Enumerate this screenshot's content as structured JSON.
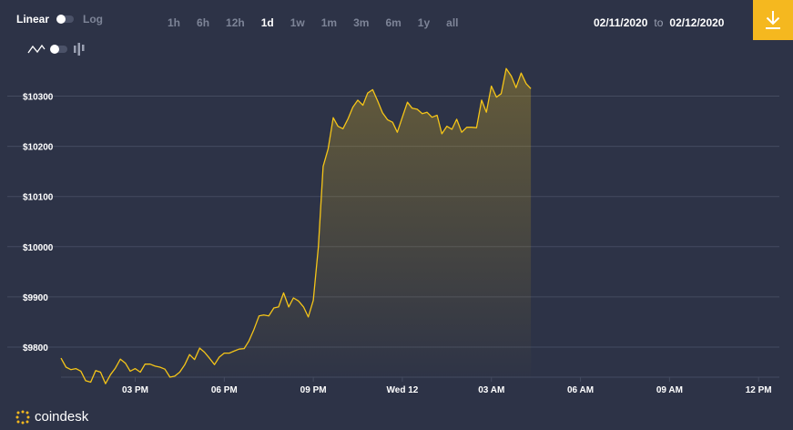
{
  "toolbar": {
    "scale_active": "Linear",
    "scale_inactive": "Log",
    "ranges": [
      {
        "label": "1h",
        "active": false
      },
      {
        "label": "6h",
        "active": false
      },
      {
        "label": "12h",
        "active": false
      },
      {
        "label": "1d",
        "active": true
      },
      {
        "label": "1w",
        "active": false
      },
      {
        "label": "1m",
        "active": false
      },
      {
        "label": "3m",
        "active": false
      },
      {
        "label": "6m",
        "active": false
      },
      {
        "label": "1y",
        "active": false
      },
      {
        "label": "all",
        "active": false
      }
    ],
    "date_from": "02/11/2020",
    "date_separator": "to",
    "date_to": "02/12/2020"
  },
  "brand": {
    "name": "coindesk"
  },
  "colors": {
    "background": "#2d3347",
    "line": "#f5c518",
    "accent": "#f5b81f",
    "grid": "#444b60",
    "tick_text": "#ffffff"
  },
  "icons": {
    "download": "download-icon",
    "line_type": "line-chart-icon",
    "candle_type": "candlestick-icon",
    "logo": "coindesk-logo-icon"
  },
  "chart_data": {
    "type": "area",
    "title": "",
    "xlabel": "",
    "ylabel": "",
    "ylim": [
      9740,
      10350
    ],
    "y_ticks": [
      9800,
      9900,
      10000,
      10100,
      10200,
      10300
    ],
    "y_tick_labels": [
      "$9800",
      "$9900",
      "$10000",
      "$10100",
      "$10200",
      "$10300"
    ],
    "x_ticks": [
      3.5,
      6.5,
      9.5,
      12.5,
      15.5,
      18.5,
      21.5,
      24.5
    ],
    "x_tick_labels": [
      "03 PM",
      "06 PM",
      "09 PM",
      "Wed 12",
      "03 AM",
      "06 AM",
      "09 AM",
      "12 PM"
    ],
    "x_range": [
      1,
      25.2
    ],
    "grid": "horizontal",
    "series": [
      {
        "values": [
          [
            1.0,
            9778
          ],
          [
            1.17,
            9760
          ],
          [
            1.33,
            9755
          ],
          [
            1.5,
            9757
          ],
          [
            1.67,
            9752
          ],
          [
            1.83,
            9733
          ],
          [
            2.0,
            9730
          ],
          [
            2.17,
            9753
          ],
          [
            2.33,
            9750
          ],
          [
            2.5,
            9727
          ],
          [
            2.67,
            9745
          ],
          [
            2.83,
            9758
          ],
          [
            3.0,
            9776
          ],
          [
            3.17,
            9768
          ],
          [
            3.33,
            9752
          ],
          [
            3.5,
            9757
          ],
          [
            3.67,
            9750
          ],
          [
            3.83,
            9766
          ],
          [
            4.0,
            9766
          ],
          [
            4.17,
            9762
          ],
          [
            4.33,
            9760
          ],
          [
            4.5,
            9756
          ],
          [
            4.67,
            9740
          ],
          [
            4.83,
            9742
          ],
          [
            5.0,
            9750
          ],
          [
            5.17,
            9765
          ],
          [
            5.33,
            9785
          ],
          [
            5.5,
            9775
          ],
          [
            5.67,
            9798
          ],
          [
            5.83,
            9790
          ],
          [
            6.0,
            9778
          ],
          [
            6.17,
            9765
          ],
          [
            6.33,
            9780
          ],
          [
            6.5,
            9788
          ],
          [
            6.67,
            9788
          ],
          [
            6.83,
            9792
          ],
          [
            7.0,
            9796
          ],
          [
            7.17,
            9797
          ],
          [
            7.33,
            9812
          ],
          [
            7.5,
            9835
          ],
          [
            7.67,
            9862
          ],
          [
            7.83,
            9864
          ],
          [
            8.0,
            9862
          ],
          [
            8.17,
            9878
          ],
          [
            8.33,
            9880
          ],
          [
            8.5,
            9908
          ],
          [
            8.67,
            9880
          ],
          [
            8.83,
            9898
          ],
          [
            9.0,
            9892
          ],
          [
            9.17,
            9880
          ],
          [
            9.33,
            9860
          ],
          [
            9.5,
            9893
          ],
          [
            9.67,
            10000
          ],
          [
            9.83,
            10160
          ],
          [
            10.0,
            10195
          ],
          [
            10.17,
            10257
          ],
          [
            10.33,
            10240
          ],
          [
            10.5,
            10235
          ],
          [
            10.67,
            10255
          ],
          [
            10.83,
            10278
          ],
          [
            11.0,
            10292
          ],
          [
            11.17,
            10282
          ],
          [
            11.33,
            10306
          ],
          [
            11.5,
            10313
          ],
          [
            11.67,
            10290
          ],
          [
            11.83,
            10267
          ],
          [
            12.0,
            10253
          ],
          [
            12.17,
            10248
          ],
          [
            12.33,
            10228
          ],
          [
            12.5,
            10258
          ],
          [
            12.67,
            10288
          ],
          [
            12.83,
            10276
          ],
          [
            13.0,
            10274
          ],
          [
            13.17,
            10265
          ],
          [
            13.33,
            10268
          ],
          [
            13.5,
            10258
          ],
          [
            13.67,
            10262
          ],
          [
            13.83,
            10225
          ],
          [
            14.0,
            10240
          ],
          [
            14.17,
            10234
          ],
          [
            14.33,
            10254
          ],
          [
            14.5,
            10228
          ],
          [
            14.67,
            10238
          ],
          [
            14.83,
            10238
          ],
          [
            15.0,
            10237
          ],
          [
            15.17,
            10292
          ],
          [
            15.33,
            10268
          ],
          [
            15.5,
            10320
          ],
          [
            15.67,
            10298
          ],
          [
            15.83,
            10305
          ],
          [
            16.0,
            10355
          ],
          [
            16.17,
            10340
          ],
          [
            16.33,
            10317
          ],
          [
            16.5,
            10346
          ],
          [
            16.67,
            10325
          ],
          [
            16.83,
            10315
          ]
        ]
      }
    ]
  }
}
